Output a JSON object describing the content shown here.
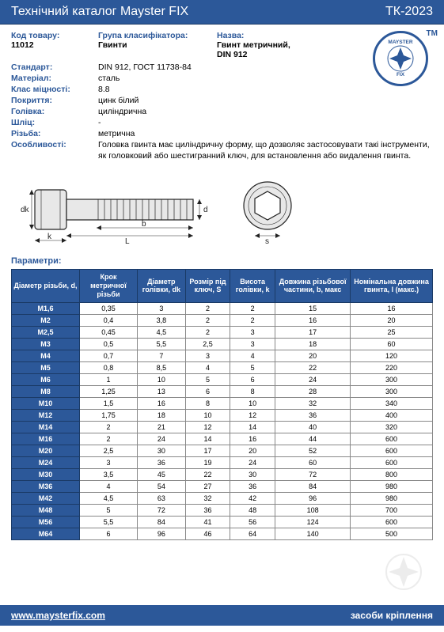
{
  "header": {
    "title": "Технічний каталог Mayster FIX",
    "code": "ТК-2023"
  },
  "meta": {
    "product_code_label": "Код товару:",
    "product_code": "11012",
    "group_label": "Група класифікатора:",
    "group": "Гвинти",
    "name_label": "Назва:",
    "name_line1": "Гвинт метричний,",
    "name_line2": "DIN 912",
    "standard_label": "Стандарт:",
    "standard": "DIN 912, ГОСТ 11738-84",
    "material_label": "Матеріал:",
    "material": "сталь",
    "strength_label": "Клас міцності:",
    "strength": "8.8",
    "coating_label": "Покриття:",
    "coating": "цинк білий",
    "head_label": "Голівка:",
    "head": "циліндрична",
    "slot_label": "Шліц:",
    "slot": "-",
    "thread_label": "Різьба:",
    "thread": "метрична",
    "features_label": "Особливості:",
    "features": "Головка гвинта має циліндричну форму,  що дозволяє застосовувати такі інструменти, як головковий або шестигранний ключ, для встановлення або видалення гвинта."
  },
  "logo": {
    "top": "MAYSTER",
    "bottom": "FIX",
    "tm": "TM"
  },
  "section_params": "Параметри:",
  "table": {
    "headers": [
      "Діаметр різьби, d,",
      "Крок метричної різьби",
      "Діаметр голівки, dk",
      "Розмір під ключ, S",
      "Висота голівки, k",
      "Довжина різьбової частини, b, макс",
      "Номінальна довжина гвинта, l (макс.)"
    ],
    "rows": [
      [
        "M1,6",
        "0,35",
        "3",
        "2",
        "2",
        "15",
        "16"
      ],
      [
        "M2",
        "0,4",
        "3,8",
        "2",
        "2",
        "16",
        "20"
      ],
      [
        "M2,5",
        "0,45",
        "4,5",
        "2",
        "3",
        "17",
        "25"
      ],
      [
        "M3",
        "0,5",
        "5,5",
        "2,5",
        "3",
        "18",
        "60"
      ],
      [
        "M4",
        "0,7",
        "7",
        "3",
        "4",
        "20",
        "120"
      ],
      [
        "M5",
        "0,8",
        "8,5",
        "4",
        "5",
        "22",
        "220"
      ],
      [
        "M6",
        "1",
        "10",
        "5",
        "6",
        "24",
        "300"
      ],
      [
        "M8",
        "1,25",
        "13",
        "6",
        "8",
        "28",
        "300"
      ],
      [
        "M10",
        "1,5",
        "16",
        "8",
        "10",
        "32",
        "340"
      ],
      [
        "M12",
        "1,75",
        "18",
        "10",
        "12",
        "36",
        "400"
      ],
      [
        "M14",
        "2",
        "21",
        "12",
        "14",
        "40",
        "320"
      ],
      [
        "M16",
        "2",
        "24",
        "14",
        "16",
        "44",
        "600"
      ],
      [
        "M20",
        "2,5",
        "30",
        "17",
        "20",
        "52",
        "600"
      ],
      [
        "M24",
        "3",
        "36",
        "19",
        "24",
        "60",
        "600"
      ],
      [
        "M30",
        "3,5",
        "45",
        "22",
        "30",
        "72",
        "800"
      ],
      [
        "M36",
        "4",
        "54",
        "27",
        "36",
        "84",
        "980"
      ],
      [
        "M42",
        "4,5",
        "63",
        "32",
        "42",
        "96",
        "980"
      ],
      [
        "M48",
        "5",
        "72",
        "36",
        "48",
        "108",
        "700"
      ],
      [
        "M56",
        "5,5",
        "84",
        "41",
        "56",
        "124",
        "600"
      ],
      [
        "M64",
        "6",
        "96",
        "46",
        "64",
        "140",
        "500"
      ]
    ]
  },
  "footer": {
    "url": "www.maysterfix.com",
    "text": "засоби кріплення"
  },
  "diagram": {
    "labels": {
      "dk": "dk",
      "k": "k",
      "L": "L",
      "b": "b",
      "d": "d",
      "s": "s"
    },
    "colors": {
      "stroke": "#222",
      "fill": "#e8e8e8",
      "text": "#2c5899"
    }
  },
  "styling": {
    "primary_color": "#2c5899",
    "border_color": "#1a3a66",
    "header_fontsize": 15,
    "meta_fontsize": 10.5,
    "table_fontsize": 9,
    "footer_fontsize": 12
  }
}
